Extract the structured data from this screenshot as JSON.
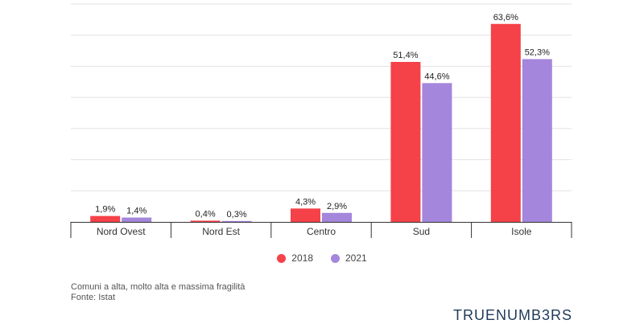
{
  "chart_data": {
    "type": "bar",
    "categories": [
      "Nord Ovest",
      "Nord Est",
      "Centro",
      "Sud",
      "Isole"
    ],
    "series": [
      {
        "name": "2018",
        "color": "#f54148",
        "values": [
          1.9,
          0.4,
          4.3,
          51.4,
          63.6
        ],
        "labels": [
          "1,9%",
          "0,4%",
          "4,3%",
          "51,4%",
          "63,6%"
        ]
      },
      {
        "name": "2021",
        "color": "#a486dc",
        "values": [
          1.4,
          0.3,
          2.9,
          44.6,
          52.3
        ],
        "labels": [
          "1,4%",
          "0,3%",
          "2,9%",
          "44,6%",
          "52,3%"
        ]
      }
    ],
    "ylim": [
      0,
      70
    ],
    "y_gridlines": [
      10,
      20,
      30,
      40,
      50,
      60,
      70
    ],
    "grid": true,
    "legend_position": "bottom-center"
  },
  "footnote": {
    "note": "Comuni a alta, molto alta e massima fragilità",
    "source": "Fonte: Istat"
  },
  "brand": {
    "text": "TRUENUMB3RS",
    "color": "#1f3a5a"
  }
}
